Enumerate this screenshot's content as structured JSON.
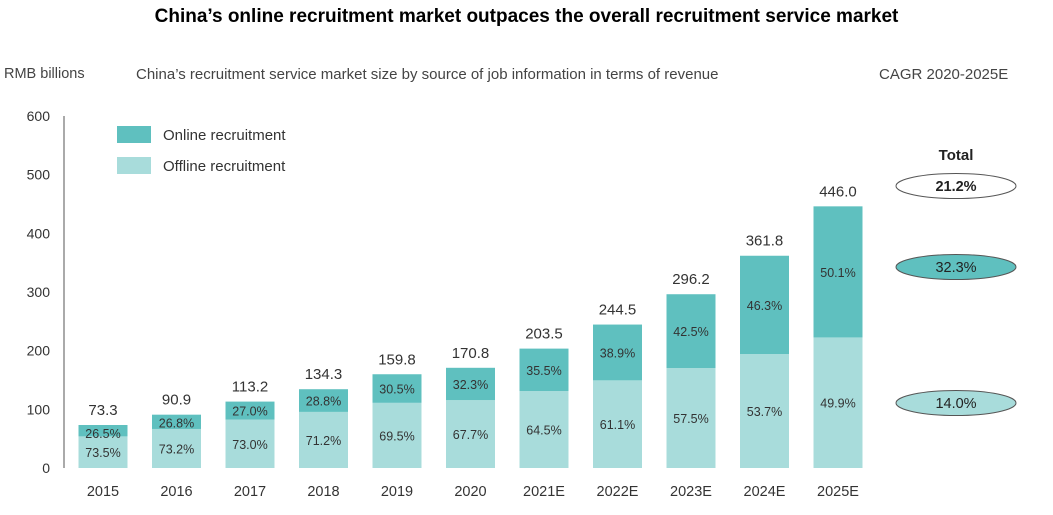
{
  "headline": "China’s online recruitment market outpaces the overall recruitment service market",
  "chart_data": {
    "type": "bar",
    "stacked": true,
    "title": "China’s recruitment service market size by source of job information in terms of revenue",
    "ylabel": "RMB billions",
    "ylim": [
      0,
      600
    ],
    "yticks": [
      0,
      100,
      200,
      300,
      400,
      500,
      600
    ],
    "categories": [
      "2015",
      "2016",
      "2017",
      "2018",
      "2019",
      "2020",
      "2021E",
      "2022E",
      "2023E",
      "2024E",
      "2025E"
    ],
    "totals": [
      73.3,
      90.9,
      113.2,
      134.3,
      159.8,
      170.8,
      203.5,
      244.5,
      296.2,
      361.8,
      446.0
    ],
    "total_labels": [
      "73.3",
      "90.9",
      "113.2",
      "134.3",
      "159.8",
      "170.8",
      "203.5",
      "244.5",
      "296.2",
      "361.8",
      "446.0"
    ],
    "series": [
      {
        "name": "Offline recruitment",
        "color": "#a8dcdb",
        "share_labels": [
          "73.5%",
          "73.2%",
          "73.0%",
          "71.2%",
          "69.5%",
          "67.7%",
          "64.5%",
          "61.1%",
          "57.5%",
          "53.7%",
          "49.9%"
        ],
        "shares": [
          73.5,
          73.2,
          73.0,
          71.2,
          69.5,
          67.7,
          64.5,
          61.1,
          57.5,
          53.7,
          49.9
        ]
      },
      {
        "name": "Online recruitment",
        "color": "#5fc0bf",
        "share_labels": [
          "26.5%",
          "26.8%",
          "27.0%",
          "28.8%",
          "30.5%",
          "32.3%",
          "35.5%",
          "38.9%",
          "42.5%",
          "46.3%",
          "50.1%"
        ],
        "shares": [
          26.5,
          26.8,
          27.0,
          28.8,
          30.5,
          32.3,
          35.5,
          38.9,
          42.5,
          46.3,
          50.1
        ]
      }
    ],
    "legend": [
      "Online recruitment",
      "Offline recruitment"
    ],
    "legend_position": "top-left",
    "cagr": {
      "title": "CAGR 2020-2025E",
      "total_label": "Total",
      "items": [
        {
          "name": "Total",
          "value": "21.2%",
          "fill": "#ffffff"
        },
        {
          "name": "Online recruitment",
          "value": "32.3%",
          "fill": "#5fc0bf"
        },
        {
          "name": "Offline recruitment",
          "value": "14.0%",
          "fill": "#a8dcdb"
        }
      ]
    }
  }
}
